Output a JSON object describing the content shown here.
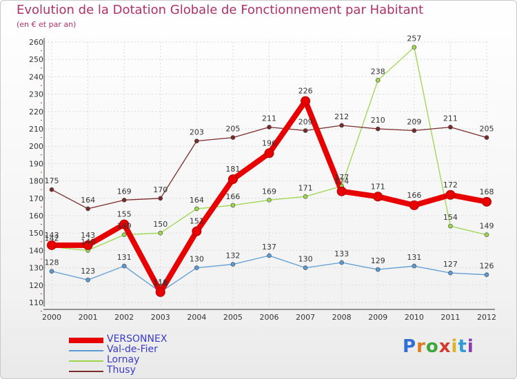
{
  "title": "Evolution de la Dotation Globale de Fonctionnement par Habitant",
  "subtitle": "(en € et par an)",
  "brand": {
    "text": "Proxiti",
    "letters": [
      "P",
      "r",
      "o",
      "x",
      "i",
      "t",
      "i"
    ],
    "colors": [
      "#2f6fd6",
      "#e07a1f",
      "#3ca63c",
      "#d23b2b",
      "#e0b21f",
      "#2f9ad6",
      "#8a3bb0"
    ]
  },
  "chart_data": {
    "type": "line",
    "title": "Evolution de la Dotation Globale de Fonctionnement par Habitant",
    "ylabel": "(en € et par an)",
    "xlabel": "",
    "ylim": [
      110,
      260
    ],
    "ytick_step": 10,
    "yticks": [
      "110",
      "120",
      "130",
      "140",
      "150",
      "160",
      "170",
      "180",
      "190",
      "200",
      "210",
      "220",
      "230",
      "240",
      "250",
      "260"
    ],
    "categories": [
      "2000",
      "2001",
      "2002",
      "2003",
      "2004",
      "2005",
      "2006",
      "2007",
      "2008",
      "2009",
      "2010",
      "2011",
      "2012"
    ],
    "legend_position": "bottom-left",
    "grid": true,
    "series": [
      {
        "name": "VERSONNEX",
        "color": "#e80000",
        "bold": true,
        "values": [
          143,
          143,
          155,
          116,
          151,
          181,
          196,
          226,
          174,
          171,
          166,
          172,
          168
        ],
        "labels": [
          "143",
          "143",
          "155",
          "116",
          "151",
          "181",
          "196",
          "226",
          "174",
          "171",
          "166",
          "172",
          "168"
        ]
      },
      {
        "name": "Val-de-Fier",
        "color": "#5b9bd5",
        "bold": false,
        "values": [
          128,
          123,
          131,
          116,
          130,
          132,
          137,
          130,
          133,
          129,
          131,
          127,
          126
        ],
        "labels": [
          "128",
          "123",
          "131",
          "116",
          "130",
          "132",
          "137",
          "130",
          "133",
          "129",
          "131",
          "127",
          "126"
        ]
      },
      {
        "name": "Lornay",
        "color": "#9bd64b",
        "bold": false,
        "values": [
          142,
          140,
          149,
          150,
          164,
          166,
          169,
          171,
          177,
          238,
          257,
          154,
          149
        ],
        "labels": [
          "142",
          "140",
          "149",
          "150",
          "164",
          "166",
          "169",
          "171",
          "177",
          "238",
          "257",
          "154",
          "149"
        ]
      },
      {
        "name": "Thusy",
        "color": "#7a2a2a",
        "bold": false,
        "values": [
          175,
          164,
          169,
          170,
          203,
          205,
          211,
          209,
          212,
          210,
          209,
          211,
          205
        ],
        "labels": [
          "175",
          "164",
          "169",
          "170",
          "203",
          "205",
          "211",
          "209",
          "212",
          "210",
          "209",
          "211",
          "205"
        ]
      }
    ]
  }
}
